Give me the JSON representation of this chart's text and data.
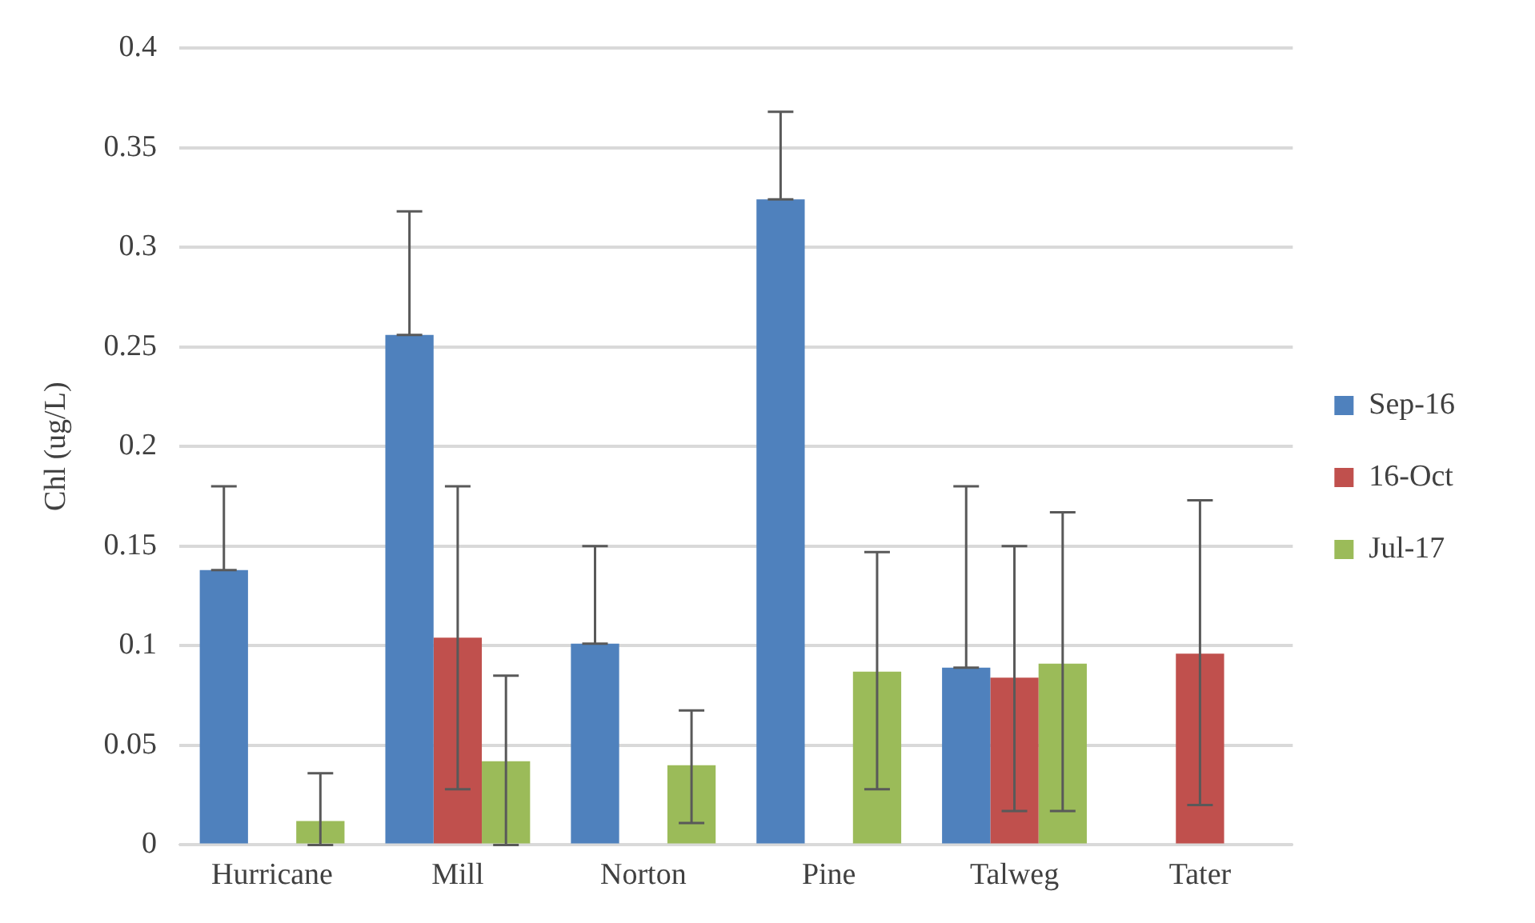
{
  "chart_data": {
    "type": "bar",
    "ylabel": "Chl (ug/L)",
    "categories": [
      "Hurricane",
      "Mill",
      "Norton",
      "Pine",
      "Talweg",
      "Tater"
    ],
    "series": [
      {
        "name": "Sep-16",
        "color": "#4f81bd",
        "values": [
          0.138,
          0.256,
          0.101,
          0.324,
          0.089,
          null
        ],
        "errors": [
          [
            0.138,
            0.18
          ],
          [
            0.256,
            0.318
          ],
          [
            0.101,
            0.15
          ],
          [
            0.324,
            0.368
          ],
          [
            0.089,
            0.18
          ],
          null
        ]
      },
      {
        "name": "16-Oct",
        "color": "#c0504d",
        "values": [
          null,
          0.104,
          null,
          null,
          0.084,
          0.096
        ],
        "errors": [
          null,
          [
            0.028,
            0.18
          ],
          null,
          null,
          [
            0.017,
            0.15
          ],
          [
            0.02,
            0.173
          ]
        ]
      },
      {
        "name": "Jul-17",
        "color": "#9bbb59",
        "values": [
          0.012,
          0.042,
          0.04,
          0.087,
          0.091,
          null
        ],
        "errors": [
          [
            0,
            0.036
          ],
          [
            0,
            0.085
          ],
          [
            0.011,
            0.0675
          ],
          [
            0.028,
            0.147
          ],
          [
            0.017,
            0.167
          ],
          null
        ]
      }
    ],
    "ylim": [
      0,
      0.4
    ],
    "yticks": [
      0,
      0.05,
      0.1,
      0.15,
      0.2,
      0.25,
      0.3,
      0.35,
      0.4
    ],
    "grid": "y",
    "legend": "right"
  }
}
